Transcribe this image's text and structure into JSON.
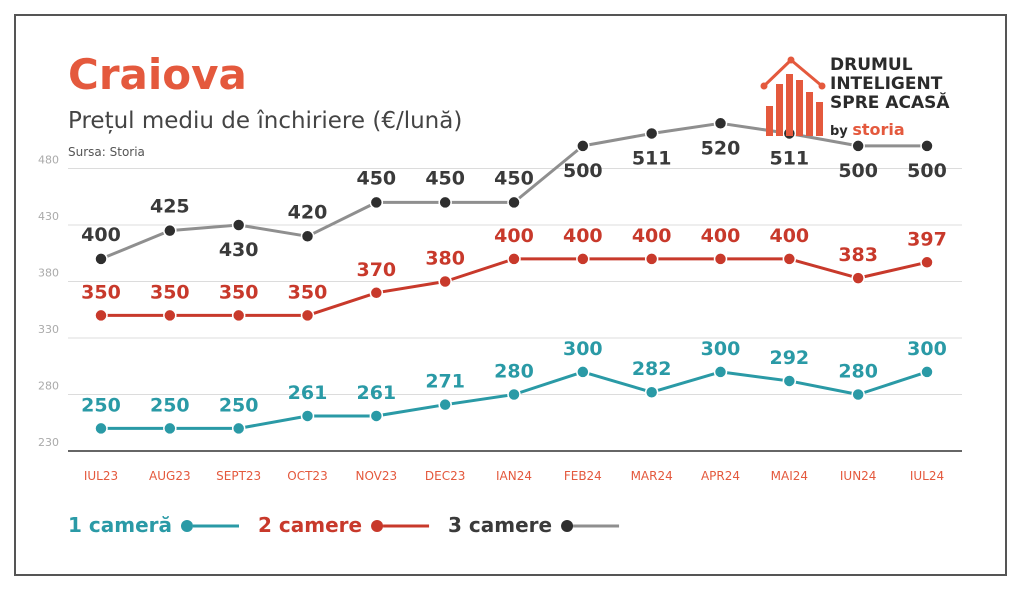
{
  "header": {
    "title": "Craiova",
    "subtitle": "Prețul mediu de închiriere (€/lună)",
    "source": "Sursa: Storia"
  },
  "logo": {
    "line1": "DRUMUL",
    "line2": "INTELIGENT",
    "line3": "SPRE ACASĂ",
    "by": "by",
    "brand": "storia"
  },
  "chart_data": {
    "type": "line",
    "categories": [
      "IUL23",
      "AUG23",
      "SEPT23",
      "OCT23",
      "NOV23",
      "DEC23",
      "IAN24",
      "FEB24",
      "MAR24",
      "APR24",
      "MAI24",
      "IUN24",
      "IUL24"
    ],
    "ylim": [
      230,
      500
    ],
    "yticks": [
      230,
      280,
      330,
      380,
      430,
      480
    ],
    "grid": true,
    "legend_position": "bottom-left",
    "series": [
      {
        "name": "1 cameră",
        "color": "#2a9aa6",
        "values": [
          250,
          250,
          250,
          261,
          261,
          271,
          280,
          300,
          282,
          300,
          292,
          280,
          300
        ]
      },
      {
        "name": "2 camere",
        "color": "#c8392b",
        "values": [
          350,
          350,
          350,
          350,
          370,
          380,
          400,
          400,
          400,
          400,
          400,
          383,
          397
        ]
      },
      {
        "name": "3 camere",
        "color": "#8f8f8f",
        "label_color": "#3a3a3a",
        "values": [
          400,
          425,
          430,
          420,
          450,
          450,
          450,
          500,
          511,
          520,
          511,
          500,
          500
        ]
      }
    ]
  }
}
